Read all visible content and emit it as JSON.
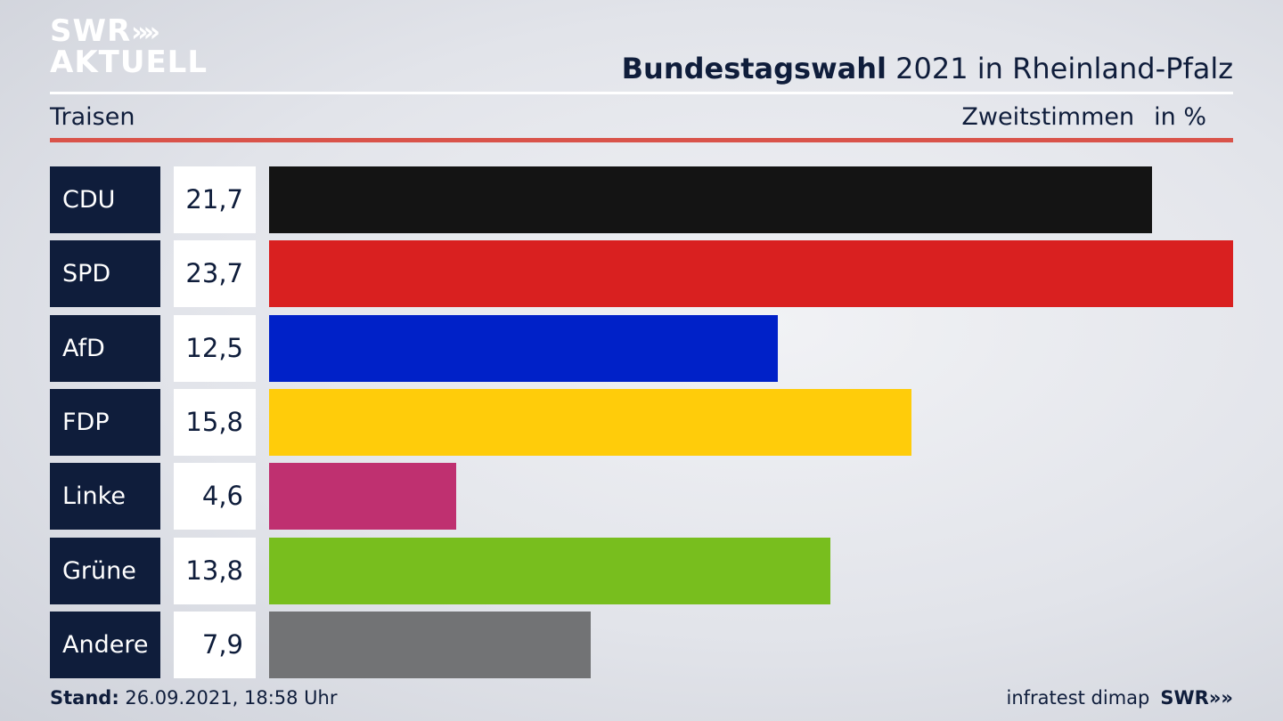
{
  "header": {
    "logo_line1": "SWR",
    "logo_arrows": "»",
    "logo_line2": "AKTUELL",
    "title_bold": "Bundestagswahl",
    "title_rest": " 2021 in Rheinland-Pfalz",
    "location": "Traisen",
    "vote_type": "Zweitstimmen",
    "unit": "in %"
  },
  "chart_data": {
    "type": "bar",
    "orientation": "horizontal",
    "categories": [
      "CDU",
      "SPD",
      "AfD",
      "FDP",
      "Linke",
      "Grüne",
      "Andere"
    ],
    "values": [
      21.7,
      23.7,
      12.5,
      15.8,
      4.6,
      13.8,
      7.9
    ],
    "value_labels": [
      "21,7",
      "23,7",
      "12,5",
      "15,8",
      "4,6",
      "13,8",
      "7,9"
    ],
    "colors": [
      "#141414",
      "#d92020",
      "#0021c8",
      "#ffcc0a",
      "#bf3070",
      "#78be1e",
      "#727375"
    ],
    "xlim": [
      0,
      23.7
    ],
    "grid": false,
    "legend": "none"
  },
  "footer": {
    "stand_label": "Stand:",
    "stand_value": " 26.09.2021, 18:58 Uhr",
    "source": "infratest dimap",
    "brand": "SWR",
    "brand_arrows": "»"
  }
}
